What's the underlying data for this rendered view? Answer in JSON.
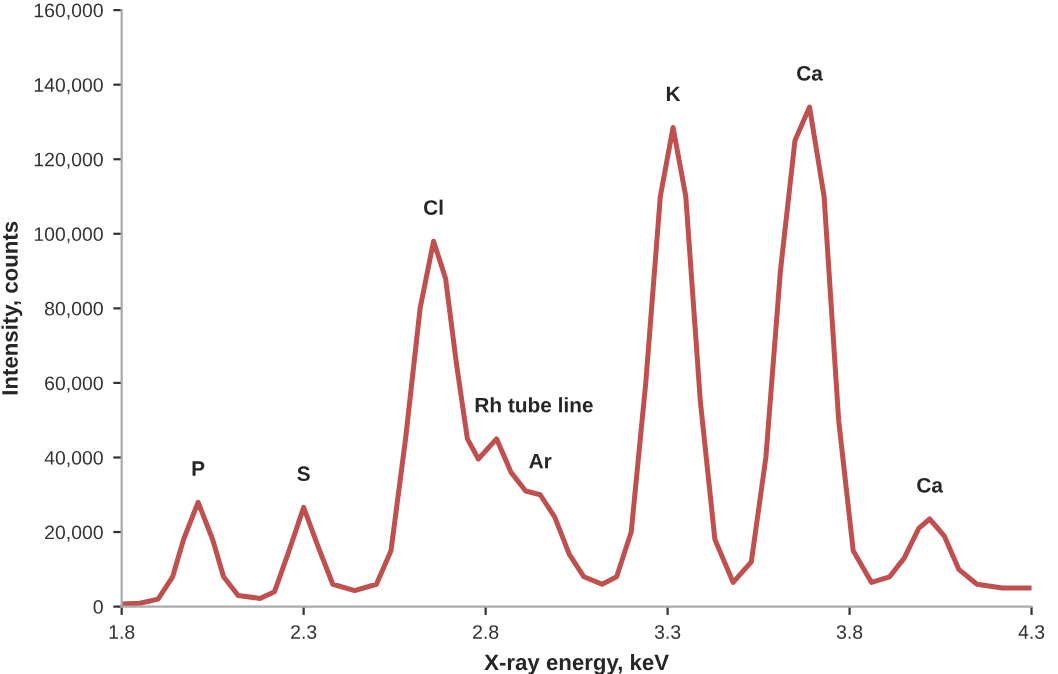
{
  "chart_data": {
    "type": "line",
    "xlabel": "X-ray energy, keV",
    "ylabel": "Intensity, counts",
    "x": [
      1.8,
      1.85,
      1.9,
      1.94,
      1.97,
      2.01,
      2.05,
      2.08,
      2.12,
      2.18,
      2.22,
      2.26,
      2.3,
      2.34,
      2.38,
      2.44,
      2.5,
      2.54,
      2.58,
      2.62,
      2.657,
      2.69,
      2.72,
      2.75,
      2.78,
      2.83,
      2.87,
      2.91,
      2.95,
      2.99,
      3.03,
      3.07,
      3.12,
      3.16,
      3.2,
      3.24,
      3.28,
      3.315,
      3.35,
      3.39,
      3.43,
      3.48,
      3.53,
      3.57,
      3.61,
      3.65,
      3.69,
      3.73,
      3.77,
      3.81,
      3.86,
      3.91,
      3.95,
      3.99,
      4.02,
      4.06,
      4.1,
      4.15,
      4.22,
      4.3
    ],
    "series": [
      {
        "color": "#c0504d",
        "values": [
          700,
          900,
          2000,
          8000,
          18000,
          28000,
          18000,
          8000,
          3000,
          2200,
          4000,
          15000,
          26600,
          16000,
          6000,
          4300,
          6000,
          15000,
          45000,
          80000,
          98000,
          88000,
          65000,
          45000,
          39600,
          45000,
          36000,
          31000,
          30000,
          24000,
          14000,
          8000,
          6000,
          8000,
          20000,
          60000,
          110000,
          128500,
          110000,
          55000,
          18000,
          6500,
          12000,
          40000,
          90000,
          125000,
          134000,
          110000,
          50000,
          15000,
          6500,
          8000,
          13000,
          21000,
          23500,
          19000,
          10000,
          6000,
          5000,
          5000
        ]
      }
    ],
    "xlim": [
      1.8,
      4.3
    ],
    "xticks": [
      1.8,
      2.3,
      2.8,
      3.3,
      3.8,
      4.3
    ],
    "ylim": [
      0,
      160000
    ],
    "yticks": [
      {
        "value": 0,
        "label": "0"
      },
      {
        "value": 20000,
        "label": "20,000"
      },
      {
        "value": 40000,
        "label": "40,000"
      },
      {
        "value": 60000,
        "label": "60,000"
      },
      {
        "value": 80000,
        "label": "80,000"
      },
      {
        "value": 100000,
        "label": "100,000"
      },
      {
        "value": 120000,
        "label": "120,000"
      },
      {
        "value": 140000,
        "label": "140,000"
      },
      {
        "value": 160000,
        "label": "160,000"
      }
    ],
    "annotations": [
      {
        "text": "P",
        "x": 2.01,
        "y": 28000
      },
      {
        "text": "S",
        "x": 2.3,
        "y": 26600
      },
      {
        "text": "Cl",
        "x": 2.657,
        "y": 98000
      },
      {
        "text": "Rh tube line",
        "x": 2.83,
        "y": 45000
      },
      {
        "text": "Ar",
        "x": 2.95,
        "y": 30000
      },
      {
        "text": "K",
        "x": 3.315,
        "y": 128500
      },
      {
        "text": "Ca",
        "x": 3.69,
        "y": 134000
      },
      {
        "text": "Ca",
        "x": 4.02,
        "y": 23500
      }
    ],
    "grid": false,
    "legend": false
  }
}
